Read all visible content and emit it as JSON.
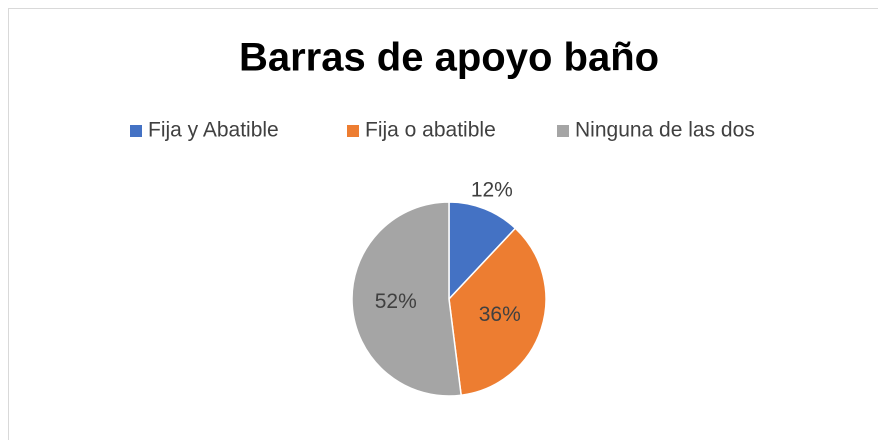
{
  "chart_data": {
    "type": "pie",
    "title": "Barras de apoyo baño",
    "categories": [
      "Fija y Abatible",
      "Fija o abatible",
      "Ninguna de las dos"
    ],
    "values": [
      12,
      36,
      52
    ],
    "value_labels": [
      "12%",
      "36%",
      "52%"
    ],
    "colors": [
      "#4472c4",
      "#ed7d31",
      "#a5a5a5"
    ],
    "legend": "top"
  }
}
